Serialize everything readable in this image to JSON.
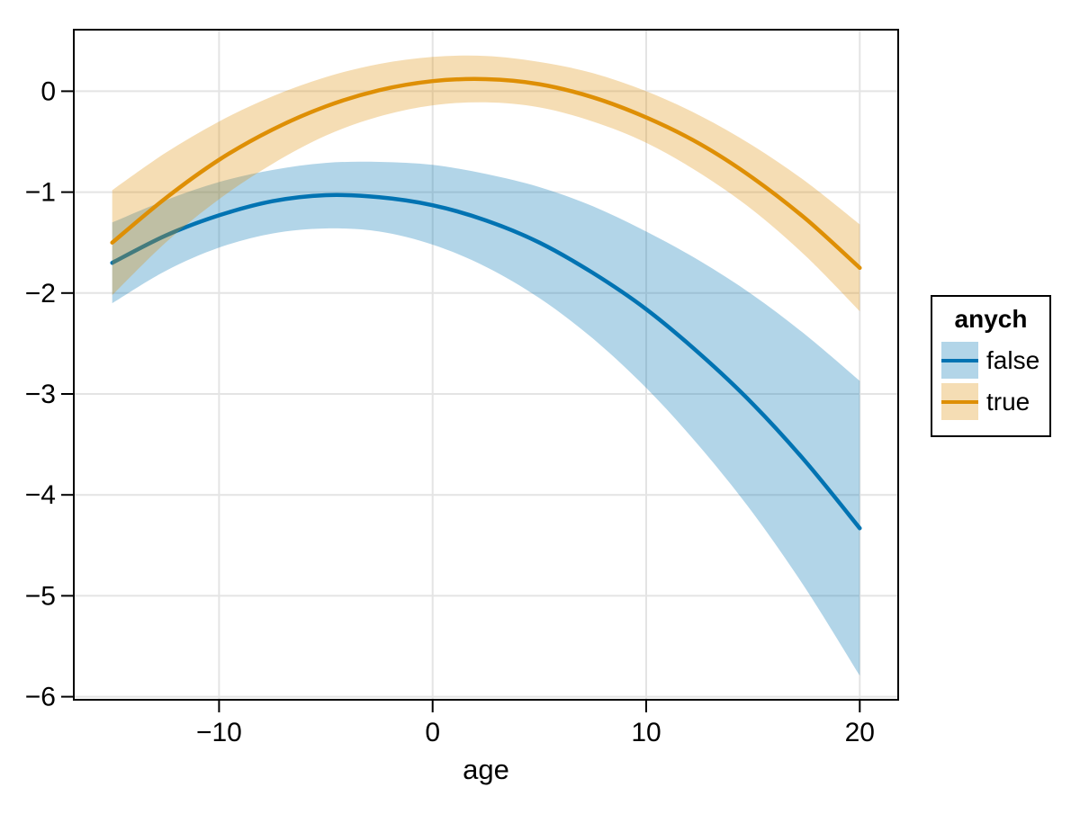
{
  "figure": {
    "background": "#FFFFFF",
    "xlabel": "age",
    "legend": {
      "title": "anych",
      "entries": [
        {
          "label": "false",
          "line_color": "#0173B2",
          "band_color": "rgba(1,115,178,0.30)"
        },
        {
          "label": "true",
          "line_color": "#DE8F05",
          "band_color": "rgba(222,143,5,0.30)"
        }
      ]
    }
  },
  "chart_data": {
    "type": "line",
    "title": "",
    "xlabel": "age",
    "ylabel": "",
    "grid": true,
    "legend_position": "right-outside",
    "legend_title": "anych",
    "xlim": [
      -16.8,
      21.8
    ],
    "ylim": [
      -6.03,
      0.61
    ],
    "x_ticks": {
      "values": [
        -10,
        0,
        10,
        20
      ],
      "labels": [
        "−10",
        "0",
        "10",
        "20"
      ]
    },
    "y_ticks": {
      "values": [
        0,
        -1,
        -2,
        -3,
        -4,
        -5,
        -6
      ],
      "labels": [
        "0",
        "−1",
        "−2",
        "−3",
        "−4",
        "−5",
        "−6"
      ]
    },
    "x": [
      -15,
      -12.5,
      -10,
      -7.5,
      -5,
      -2.5,
      0,
      2.5,
      5,
      7.5,
      10,
      12.5,
      15,
      17.5,
      20
    ],
    "series": [
      {
        "name": "false",
        "color": "#0173B2",
        "band_color": "rgba(1,115,178,0.30)",
        "y": [
          -1.7,
          -1.43,
          -1.23,
          -1.09,
          -1.03,
          -1.05,
          -1.13,
          -1.28,
          -1.5,
          -1.8,
          -2.16,
          -2.6,
          -3.1,
          -3.68,
          -4.33
        ],
        "hi": [
          -1.3,
          -1.08,
          -0.9,
          -0.78,
          -0.71,
          -0.7,
          -0.73,
          -0.82,
          -0.95,
          -1.14,
          -1.39,
          -1.68,
          -2.02,
          -2.42,
          -2.87
        ],
        "lo": [
          -2.1,
          -1.78,
          -1.55,
          -1.41,
          -1.36,
          -1.39,
          -1.52,
          -1.74,
          -2.05,
          -2.45,
          -2.94,
          -3.52,
          -4.18,
          -4.94,
          -5.79
        ]
      },
      {
        "name": "true",
        "color": "#DE8F05",
        "band_color": "rgba(222,143,5,0.30)",
        "y": [
          -1.5,
          -1.06,
          -0.68,
          -0.38,
          -0.15,
          0.01,
          0.1,
          0.12,
          0.07,
          -0.06,
          -0.26,
          -0.52,
          -0.86,
          -1.27,
          -1.75
        ],
        "hi": [
          -0.98,
          -0.61,
          -0.3,
          -0.05,
          0.14,
          0.27,
          0.34,
          0.35,
          0.29,
          0.18,
          0.0,
          -0.24,
          -0.54,
          -0.9,
          -1.32
        ],
        "lo": [
          -2.02,
          -1.5,
          -1.07,
          -0.72,
          -0.44,
          -0.25,
          -0.14,
          -0.11,
          -0.16,
          -0.3,
          -0.51,
          -0.81,
          -1.18,
          -1.64,
          -2.18
        ]
      }
    ],
    "style": {
      "grid_color": "#E4E4E4",
      "frame_color": "#000000",
      "line_width": 4.5,
      "band_opacity": 0.3
    }
  }
}
